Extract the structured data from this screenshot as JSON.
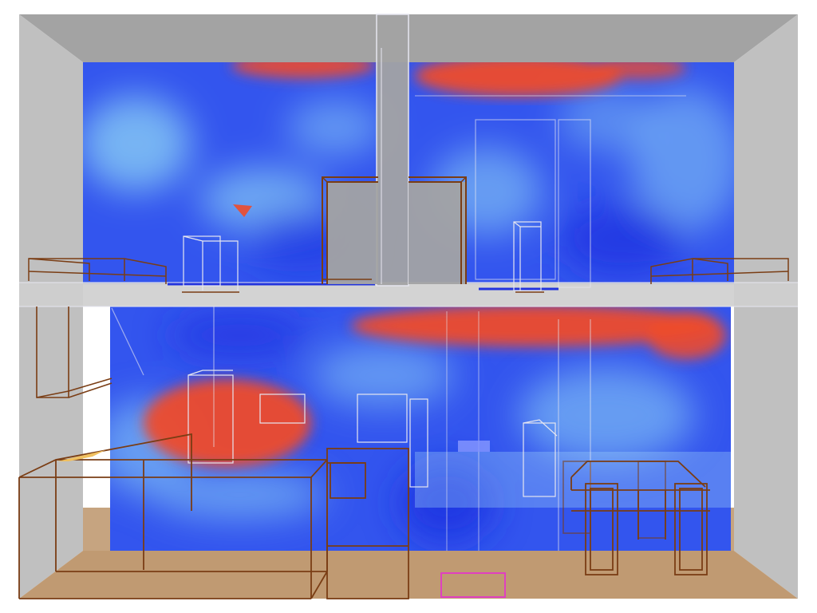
{
  "scene": {
    "colors": {
      "background": "#ffffff",
      "wall_side": "#c0c0c0",
      "wall_top": "#a3a3a3",
      "floor": "#c09a72",
      "slab": "#cfcfcf",
      "heat_cold": "#3355ee",
      "heat_mid": "#88ccf5",
      "heat_hot": "#ee4b2b",
      "furniture": "#7a3d14",
      "wireframe": "#e6e6f0",
      "marker": "#e040c0",
      "highlight": "#f0c060"
    }
  }
}
